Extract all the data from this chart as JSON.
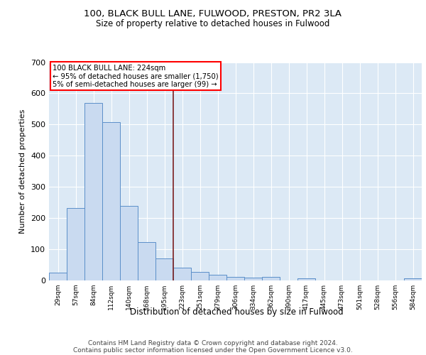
{
  "title1": "100, BLACK BULL LANE, FULWOOD, PRESTON, PR2 3LA",
  "title2": "Size of property relative to detached houses in Fulwood",
  "xlabel": "Distribution of detached houses by size in Fulwood",
  "ylabel": "Number of detached properties",
  "categories": [
    "29sqm",
    "57sqm",
    "84sqm",
    "112sqm",
    "140sqm",
    "168sqm",
    "195sqm",
    "223sqm",
    "251sqm",
    "279sqm",
    "306sqm",
    "334sqm",
    "362sqm",
    "390sqm",
    "417sqm",
    "445sqm",
    "473sqm",
    "501sqm",
    "528sqm",
    "556sqm",
    "584sqm"
  ],
  "values": [
    25,
    232,
    570,
    508,
    240,
    123,
    71,
    40,
    27,
    18,
    12,
    10,
    12,
    0,
    6,
    0,
    0,
    0,
    0,
    0,
    6
  ],
  "bar_color": "#c9daf0",
  "bar_edge_color": "#5b8fc9",
  "vline_color": "#7b2020",
  "annotation_line1": "100 BLACK BULL LANE: 224sqm",
  "annotation_line2": "← 95% of detached houses are smaller (1,750)",
  "annotation_line3": "5% of semi-detached houses are larger (99) →",
  "ylim": [
    0,
    700
  ],
  "yticks": [
    0,
    100,
    200,
    300,
    400,
    500,
    600,
    700
  ],
  "bg_color": "#dce9f5",
  "footer1": "Contains HM Land Registry data © Crown copyright and database right 2024.",
  "footer2": "Contains public sector information licensed under the Open Government Licence v3.0."
}
